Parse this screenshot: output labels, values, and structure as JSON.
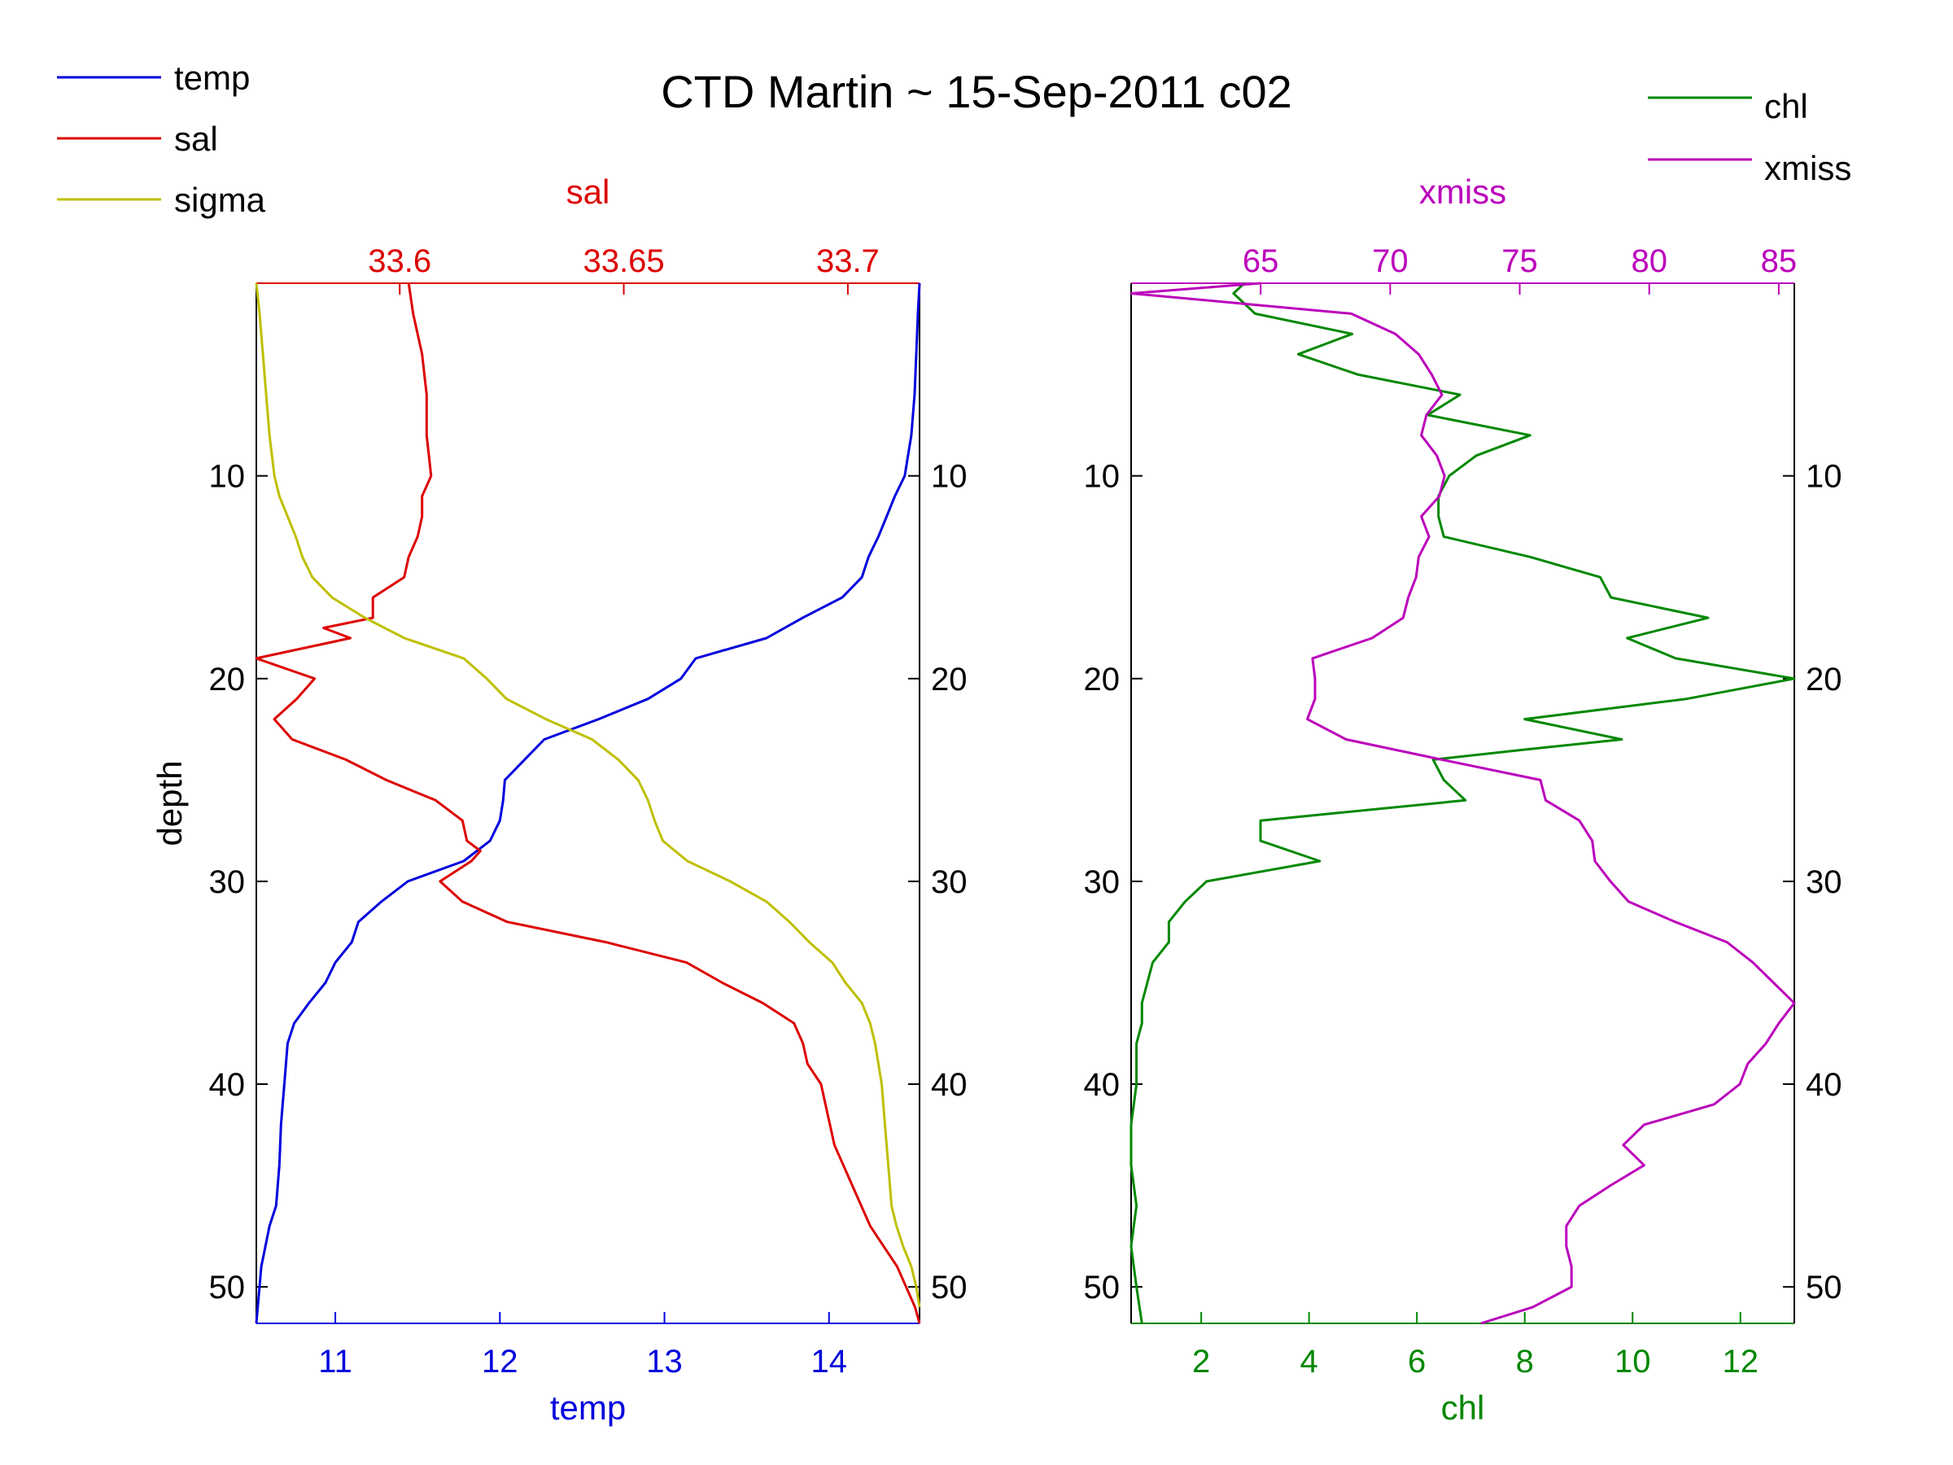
{
  "title": "CTD Martin ~ 15-Sep-2011 c02",
  "colors": {
    "temp": "#0000dd",
    "sal": "#dd0000",
    "sigma": "#bfbf00",
    "chl": "#008800",
    "xmiss": "#bb00bb",
    "axis": "#000000"
  },
  "legend_left": [
    {
      "label": "temp",
      "color": "#0000dd"
    },
    {
      "label": "sal",
      "color": "#dd0000"
    },
    {
      "label": "sigma",
      "color": "#bfbf00"
    }
  ],
  "legend_right": [
    {
      "label": "chl",
      "color": "#008800"
    },
    {
      "label": "xmiss",
      "color": "#bb00bb"
    }
  ],
  "chart_data": [
    {
      "type": "line",
      "ylabel": "depth",
      "ylim": [
        0.5,
        51.8
      ],
      "y_reversed": true,
      "yticks": [
        10,
        20,
        30,
        40,
        50
      ],
      "x_bottom": {
        "label": "temp",
        "lim": [
          10.52,
          14.55
        ],
        "ticks": [
          11,
          12,
          13,
          14
        ]
      },
      "x_top": {
        "label": "sal",
        "lim": [
          33.568,
          33.716
        ],
        "ticks": [
          33.6,
          33.65,
          33.7
        ]
      },
      "series": [
        {
          "name": "temp",
          "axis": "bottom",
          "depth": [
            0.5,
            2,
            4,
            6,
            8,
            10,
            11,
            12,
            13,
            14,
            15,
            16,
            17,
            18,
            19,
            20,
            21,
            22,
            23,
            24,
            25,
            26,
            27,
            28,
            29,
            30,
            31,
            32,
            33,
            34,
            35,
            36,
            37,
            38,
            40,
            42,
            44,
            46,
            47,
            49,
            51.8
          ],
          "values": [
            14.55,
            14.54,
            14.53,
            14.52,
            14.5,
            14.46,
            14.4,
            14.35,
            14.3,
            14.24,
            14.2,
            14.08,
            13.84,
            13.62,
            13.19,
            13.1,
            12.9,
            12.6,
            12.27,
            12.15,
            12.03,
            12.02,
            12.0,
            11.94,
            11.78,
            11.44,
            11.28,
            11.14,
            11.1,
            11.0,
            10.94,
            10.84,
            10.75,
            10.71,
            10.69,
            10.67,
            10.66,
            10.64,
            10.6,
            10.55,
            10.52
          ]
        },
        {
          "name": "sal",
          "axis": "top",
          "depth": [
            0.5,
            2,
            4,
            6,
            8,
            10,
            11,
            12,
            13,
            14,
            15,
            16,
            17,
            17.5,
            18,
            19,
            20,
            21,
            22,
            23,
            24,
            25,
            26,
            27,
            28,
            28.5,
            29,
            30,
            31,
            32,
            33,
            34,
            35,
            36,
            37,
            38,
            39,
            40,
            41,
            42,
            43,
            44,
            45,
            46,
            47,
            48,
            49,
            50,
            51,
            51.8
          ],
          "values": [
            33.602,
            33.603,
            33.605,
            33.606,
            33.606,
            33.607,
            33.605,
            33.605,
            33.604,
            33.602,
            33.601,
            33.594,
            33.594,
            33.583,
            33.589,
            33.568,
            33.581,
            33.577,
            33.572,
            33.576,
            33.588,
            33.597,
            33.608,
            33.614,
            33.615,
            33.618,
            33.616,
            33.609,
            33.614,
            33.624,
            33.646,
            33.664,
            33.672,
            33.681,
            33.688,
            33.69,
            33.691,
            33.694,
            33.695,
            33.696,
            33.697,
            33.699,
            33.701,
            33.703,
            33.705,
            33.708,
            33.711,
            33.713,
            33.715,
            33.716
          ]
        },
        {
          "name": "sigma",
          "axis": "bottom",
          "depth": [
            0.5,
            2,
            4,
            6,
            8,
            10,
            11,
            12,
            13,
            14,
            15,
            16,
            17,
            18,
            19,
            20,
            21,
            22,
            23,
            24,
            25,
            26,
            27,
            28,
            29,
            30,
            31,
            32,
            33,
            34,
            35,
            36,
            37,
            38,
            40,
            42,
            44,
            46,
            47,
            48,
            49,
            50,
            51
          ],
          "values": [
            10.52,
            10.54,
            10.56,
            10.58,
            10.6,
            10.63,
            10.66,
            10.71,
            10.76,
            10.8,
            10.86,
            10.98,
            11.18,
            11.42,
            11.78,
            11.92,
            12.04,
            12.28,
            12.56,
            12.72,
            12.84,
            12.9,
            12.94,
            12.99,
            13.14,
            13.4,
            13.62,
            13.76,
            13.88,
            14.02,
            14.1,
            14.2,
            14.25,
            14.28,
            14.32,
            14.34,
            14.36,
            14.38,
            14.41,
            14.45,
            14.5,
            14.53,
            14.55
          ]
        }
      ]
    },
    {
      "type": "line",
      "ylim": [
        0.5,
        51.8
      ],
      "y_reversed": true,
      "yticks": [
        10,
        20,
        30,
        40,
        50
      ],
      "x_bottom": {
        "label": "chl",
        "lim": [
          0.7,
          13.0
        ],
        "ticks": [
          2,
          4,
          6,
          8,
          10,
          12
        ]
      },
      "x_top": {
        "label": "xmiss",
        "lim": [
          60.0,
          85.6
        ],
        "ticks": [
          65,
          70,
          75,
          80,
          85
        ]
      },
      "series": [
        {
          "name": "chl",
          "axis": "bottom",
          "depth": [
            0.5,
            1,
            2,
            3,
            4,
            5,
            6,
            7,
            8,
            9,
            10,
            11,
            12,
            13,
            14,
            15,
            16,
            17,
            18,
            19,
            20,
            21,
            22,
            23,
            23.5,
            24,
            25,
            26,
            27,
            28,
            29,
            30,
            31,
            32,
            33,
            34,
            35,
            36,
            37,
            38,
            39,
            40,
            42,
            44,
            46,
            48,
            50,
            51.8
          ],
          "values": [
            2.8,
            2.6,
            3.0,
            4.8,
            3.8,
            4.9,
            6.8,
            6.2,
            8.1,
            7.1,
            6.6,
            6.4,
            6.4,
            6.5,
            8.1,
            9.4,
            9.6,
            11.4,
            9.9,
            10.8,
            13.0,
            11.0,
            8.0,
            9.8,
            8.0,
            6.3,
            6.5,
            6.9,
            3.1,
            3.1,
            4.2,
            2.1,
            1.7,
            1.4,
            1.4,
            1.1,
            1.0,
            0.9,
            0.9,
            0.8,
            0.8,
            0.8,
            0.7,
            0.7,
            0.8,
            0.7,
            0.8,
            0.9
          ]
        },
        {
          "name": "xmiss",
          "axis": "top",
          "depth": [
            0.5,
            1,
            2,
            3,
            4,
            5,
            6,
            7,
            8,
            9,
            10,
            11,
            12,
            13,
            14,
            15,
            16,
            17,
            18,
            19,
            20,
            21,
            22,
            23,
            24,
            25,
            26,
            27,
            28,
            29,
            30,
            31,
            32,
            33,
            34,
            35,
            36,
            37,
            38,
            39,
            40,
            41,
            42,
            43,
            44,
            45,
            46,
            47,
            48,
            49,
            50,
            51,
            51.8
          ],
          "values": [
            65.0,
            60.0,
            68.5,
            70.2,
            71.1,
            71.6,
            72.0,
            71.4,
            71.2,
            71.8,
            72.1,
            71.9,
            71.2,
            71.5,
            71.1,
            71.0,
            70.7,
            70.5,
            69.3,
            67.0,
            67.1,
            67.1,
            66.8,
            68.3,
            72.0,
            75.8,
            76.0,
            77.3,
            77.8,
            77.9,
            78.5,
            79.2,
            81.0,
            83.0,
            84.0,
            84.8,
            85.6,
            85.0,
            84.5,
            83.8,
            83.5,
            82.5,
            79.8,
            79.0,
            79.8,
            78.5,
            77.3,
            76.8,
            76.8,
            77.0,
            77.0,
            75.5,
            73.5
          ]
        }
      ]
    }
  ]
}
